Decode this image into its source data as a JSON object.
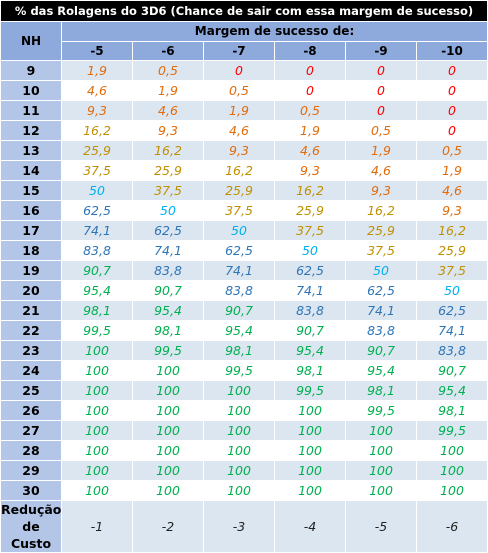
{
  "title": "% das Rolagens do 3D6 (Chance de sair com essa margem de sucesso)",
  "nh_header": "NH",
  "margin_header": "Margem de sucesso de:",
  "margins": [
    "-5",
    "-6",
    "-7",
    "-8",
    "-9",
    "-10"
  ],
  "rows": [
    {
      "nh": "9",
      "values": [
        "1,9",
        "0,5",
        "0",
        "0",
        "0",
        "0"
      ]
    },
    {
      "nh": "10",
      "values": [
        "4,6",
        "1,9",
        "0,5",
        "0",
        "0",
        "0"
      ]
    },
    {
      "nh": "11",
      "values": [
        "9,3",
        "4,6",
        "1,9",
        "0,5",
        "0",
        "0"
      ]
    },
    {
      "nh": "12",
      "values": [
        "16,2",
        "9,3",
        "4,6",
        "1,9",
        "0,5",
        "0"
      ]
    },
    {
      "nh": "13",
      "values": [
        "25,9",
        "16,2",
        "9,3",
        "4,6",
        "1,9",
        "0,5"
      ]
    },
    {
      "nh": "14",
      "values": [
        "37,5",
        "25,9",
        "16,2",
        "9,3",
        "4,6",
        "1,9"
      ]
    },
    {
      "nh": "15",
      "values": [
        "50",
        "37,5",
        "25,9",
        "16,2",
        "9,3",
        "4,6"
      ]
    },
    {
      "nh": "16",
      "values": [
        "62,5",
        "50",
        "37,5",
        "25,9",
        "16,2",
        "9,3"
      ]
    },
    {
      "nh": "17",
      "values": [
        "74,1",
        "62,5",
        "50",
        "37,5",
        "25,9",
        "16,2"
      ]
    },
    {
      "nh": "18",
      "values": [
        "83,8",
        "74,1",
        "62,5",
        "50",
        "37,5",
        "25,9"
      ]
    },
    {
      "nh": "19",
      "values": [
        "90,7",
        "83,8",
        "74,1",
        "62,5",
        "50",
        "37,5"
      ]
    },
    {
      "nh": "20",
      "values": [
        "95,4",
        "90,7",
        "83,8",
        "74,1",
        "62,5",
        "50"
      ]
    },
    {
      "nh": "21",
      "values": [
        "98,1",
        "95,4",
        "90,7",
        "83,8",
        "74,1",
        "62,5"
      ]
    },
    {
      "nh": "22",
      "values": [
        "99,5",
        "98,1",
        "95,4",
        "90,7",
        "83,8",
        "74,1"
      ]
    },
    {
      "nh": "23",
      "values": [
        "100",
        "99,5",
        "98,1",
        "95,4",
        "90,7",
        "83,8"
      ]
    },
    {
      "nh": "24",
      "values": [
        "100",
        "100",
        "99,5",
        "98,1",
        "95,4",
        "90,7"
      ]
    },
    {
      "nh": "25",
      "values": [
        "100",
        "100",
        "100",
        "99,5",
        "98,1",
        "95,4"
      ]
    },
    {
      "nh": "26",
      "values": [
        "100",
        "100",
        "100",
        "100",
        "99,5",
        "98,1"
      ]
    },
    {
      "nh": "27",
      "values": [
        "100",
        "100",
        "100",
        "100",
        "100",
        "99,5"
      ]
    },
    {
      "nh": "28",
      "values": [
        "100",
        "100",
        "100",
        "100",
        "100",
        "100"
      ]
    },
    {
      "nh": "29",
      "values": [
        "100",
        "100",
        "100",
        "100",
        "100",
        "100"
      ]
    },
    {
      "nh": "30",
      "values": [
        "100",
        "100",
        "100",
        "100",
        "100",
        "100"
      ]
    }
  ],
  "footer": {
    "label_line1": "Redução",
    "label_line2": "de Custo",
    "values": [
      "-1",
      "-2",
      "-3",
      "-4",
      "-5",
      "-6"
    ]
  },
  "colors": {
    "title_bg": "#000000",
    "header_bg": "#8ea9db",
    "rowhead_bg": "#b4c6e7",
    "band_bg": "#dce6f1",
    "zero": "#ff0000",
    "low": "#e26b0a",
    "mid": "#c09000",
    "fifty": "#00b0f0",
    "high": "#2e75b6",
    "top": "#00b050"
  }
}
